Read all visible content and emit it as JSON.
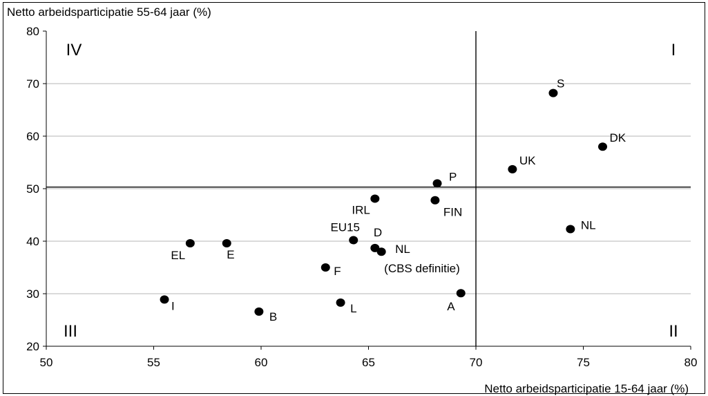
{
  "chart_data": {
    "type": "scatter",
    "title": "",
    "ylabel": "Netto arbeidsparticipatie 55-64 jaar (%)",
    "xlabel": "Netto arbeidsparticipatie 15-64 jaar (%)",
    "xlim": [
      50,
      80
    ],
    "ylim": [
      20,
      80
    ],
    "xticks": [
      "50",
      "55",
      "60",
      "65",
      "70",
      "75",
      "80"
    ],
    "yticks": [
      "20",
      "30",
      "40",
      "50",
      "60",
      "70",
      "80"
    ],
    "grid": "horizontal",
    "reference_lines": {
      "x": 70,
      "y": 50.3
    },
    "quadrants": [
      "I",
      "II",
      "III",
      "IV"
    ],
    "points": [
      {
        "label": "S",
        "x": 73.6,
        "y": 68.2
      },
      {
        "label": "DK",
        "x": 75.9,
        "y": 58.0
      },
      {
        "label": "UK",
        "x": 71.7,
        "y": 53.7
      },
      {
        "label": "P",
        "x": 68.2,
        "y": 51.0
      },
      {
        "label": "IRL",
        "x": 65.3,
        "y": 48.1
      },
      {
        "label": "FIN",
        "x": 68.1,
        "y": 47.8
      },
      {
        "label": "NL",
        "x": 74.4,
        "y": 42.3
      },
      {
        "label": "EU15",
        "x": 64.3,
        "y": 40.2
      },
      {
        "label": "D",
        "x": 65.3,
        "y": 38.7
      },
      {
        "label": "NL (CBS definitie)",
        "x": 65.6,
        "y": 38.0
      },
      {
        "label": "EL",
        "x": 56.7,
        "y": 39.6
      },
      {
        "label": "E",
        "x": 58.4,
        "y": 39.6
      },
      {
        "label": "F",
        "x": 63.0,
        "y": 35.0
      },
      {
        "label": "A",
        "x": 69.3,
        "y": 30.1
      },
      {
        "label": "I",
        "x": 55.5,
        "y": 28.9
      },
      {
        "label": "L",
        "x": 63.7,
        "y": 28.3
      },
      {
        "label": "B",
        "x": 59.9,
        "y": 26.6
      }
    ]
  }
}
